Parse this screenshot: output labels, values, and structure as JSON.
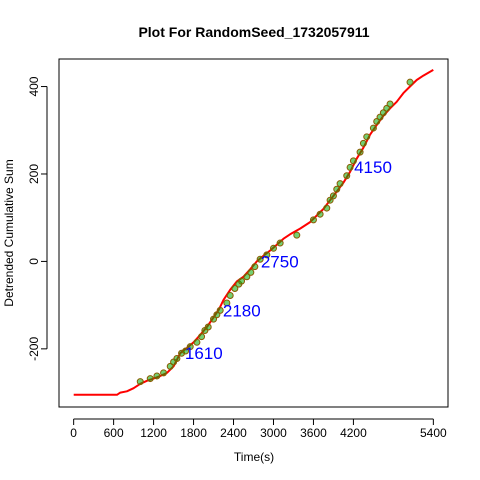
{
  "chart_data": {
    "type": "line",
    "title": "Plot For RandomSeed_1732057911",
    "xlabel": "Time(s)",
    "ylabel": "Detrended Cumulative Sum",
    "xlim": [
      -220,
      5620
    ],
    "ylim": [
      -333,
      463
    ],
    "xticks": [
      0,
      600,
      1200,
      1800,
      2400,
      3000,
      3600,
      4200,
      5400
    ],
    "yticks": [
      -200,
      0,
      200,
      400
    ],
    "grid": false,
    "legend": "none",
    "line_color": "#ff0000",
    "marker_fill": "#00aa00",
    "marker_edge": "#8b5a00",
    "annotation_color": "#0000ff",
    "series": [
      {
        "x": [
          0,
          650,
          700,
          800,
          900,
          1000,
          1100,
          1200,
          1300,
          1400,
          1500,
          1550,
          1600,
          1650,
          1700,
          1800,
          1900,
          2000,
          2100,
          2180,
          2250,
          2350,
          2450,
          2550,
          2650,
          2750,
          2850,
          2950,
          3050,
          3150,
          3250,
          3400,
          3550,
          3650,
          3750,
          3850,
          3950,
          4050,
          4150,
          4250,
          4350,
          4450,
          4550,
          4650,
          4750,
          4850,
          4950,
          5050,
          5150,
          5250,
          5400
        ],
        "y": [
          -305,
          -305,
          -300,
          -297,
          -290,
          -280,
          -273,
          -268,
          -262,
          -255,
          -240,
          -225,
          -210,
          -204,
          -198,
          -185,
          -168,
          -150,
          -128,
          -110,
          -88,
          -65,
          -46,
          -35,
          -18,
          0,
          13,
          25,
          38,
          52,
          62,
          75,
          90,
          105,
          120,
          140,
          160,
          180,
          205,
          235,
          260,
          290,
          312,
          333,
          350,
          365,
          385,
          400,
          415,
          425,
          438
        ]
      }
    ],
    "markers": {
      "x": [
        1000,
        1150,
        1250,
        1350,
        1450,
        1500,
        1550,
        1620,
        1680,
        1750,
        1850,
        1920,
        1970,
        2020,
        2100,
        2150,
        2200,
        2300,
        2350,
        2420,
        2480,
        2520,
        2600,
        2660,
        2720,
        2800,
        2900,
        3000,
        3100,
        3350,
        3600,
        3700,
        3800,
        3850,
        3900,
        3950,
        4000,
        4100,
        4150,
        4200,
        4300,
        4350,
        4400,
        4500,
        4550,
        4600,
        4650,
        4700,
        4750,
        5050
      ],
      "y": [
        -275,
        -268,
        -262,
        -255,
        -240,
        -230,
        -222,
        -210,
        -205,
        -195,
        -185,
        -172,
        -158,
        -150,
        -132,
        -122,
        -112,
        -95,
        -78,
        -62,
        -52,
        -45,
        -35,
        -25,
        -12,
        5,
        15,
        30,
        42,
        60,
        95,
        108,
        122,
        140,
        150,
        165,
        178,
        196,
        215,
        230,
        250,
        270,
        285,
        305,
        320,
        330,
        340,
        350,
        360,
        410
      ]
    },
    "annotations": [
      {
        "text": "1610",
        "x": 1610,
        "y": -210
      },
      {
        "text": "2180",
        "x": 2180,
        "y": -112
      },
      {
        "text": "2750",
        "x": 2750,
        "y": 0
      },
      {
        "text": "4150",
        "x": 4150,
        "y": 216
      }
    ]
  }
}
